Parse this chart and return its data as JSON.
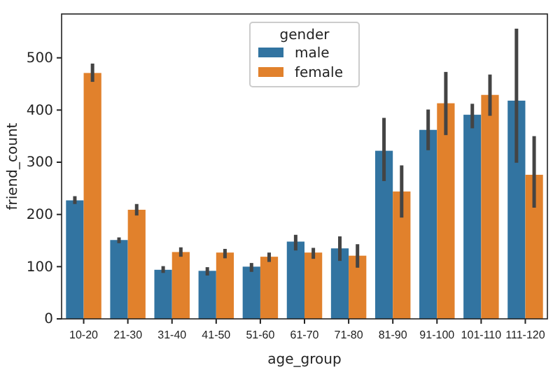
{
  "chart_data": {
    "type": "bar",
    "xlabel": "age_group",
    "ylabel": "friend_count",
    "legend_title": "gender",
    "legend": "top",
    "categories": [
      "10-20",
      "21-30",
      "31-40",
      "41-50",
      "51-60",
      "61-70",
      "71-80",
      "81-90",
      "91-100",
      "101-110",
      "111-120"
    ],
    "ylim": [
      0,
      584
    ],
    "yticks": [
      0,
      100,
      200,
      300,
      400,
      500
    ],
    "grid": false,
    "series": [
      {
        "name": "male",
        "color": "#3274a1",
        "values": [
          227,
          151,
          94,
          92,
          100,
          148,
          135,
          322,
          362,
          391,
          418
        ],
        "errors": [
          [
            220,
            235
          ],
          [
            145,
            156
          ],
          [
            88,
            101
          ],
          [
            83,
            99
          ],
          [
            90,
            107
          ],
          [
            131,
            161
          ],
          [
            111,
            158
          ],
          [
            264,
            385
          ],
          [
            323,
            401
          ],
          [
            365,
            412
          ],
          [
            299,
            556
          ]
        ]
      },
      {
        "name": "female",
        "color": "#e1812c",
        "values": [
          471,
          209,
          128,
          127,
          119,
          127,
          121,
          244,
          413,
          429,
          276
        ],
        "errors": [
          [
            454,
            489
          ],
          [
            198,
            220
          ],
          [
            119,
            137
          ],
          [
            116,
            134
          ],
          [
            109,
            127
          ],
          [
            115,
            136
          ],
          [
            98,
            143
          ],
          [
            194,
            294
          ],
          [
            352,
            473
          ],
          [
            389,
            468
          ],
          [
            213,
            350
          ]
        ]
      }
    ]
  }
}
